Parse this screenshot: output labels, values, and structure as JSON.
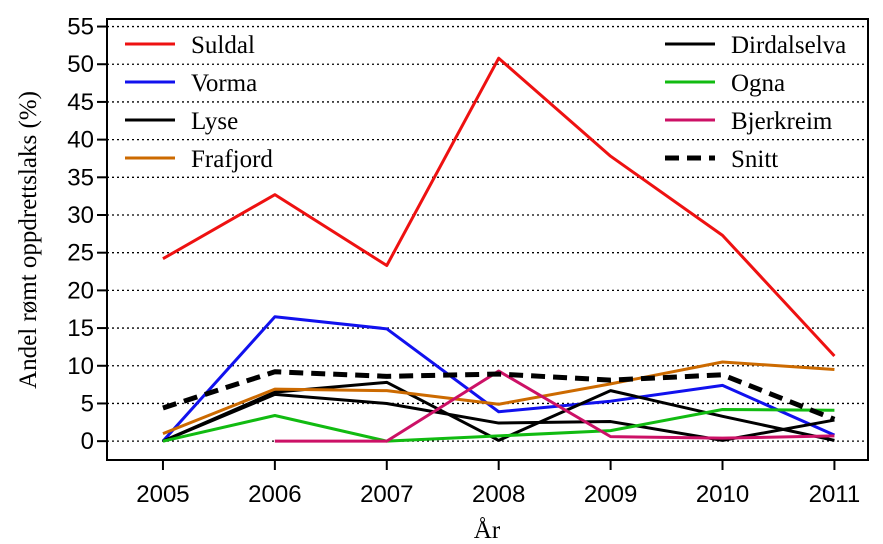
{
  "chart_data": {
    "type": "line",
    "x": [
      2005,
      2006,
      2007,
      2008,
      2009,
      2010,
      2011
    ],
    "x_label": "År",
    "y_label": "Andel rømt oppdrettslaks (%)",
    "xlim": [
      2004.5,
      2011.3
    ],
    "xticks": [
      2005,
      2006,
      2007,
      2008,
      2009,
      2010,
      2011
    ],
    "ylim": [
      -2.5,
      56
    ],
    "yticks": [
      0,
      5,
      10,
      15,
      20,
      25,
      30,
      35,
      40,
      45,
      50,
      55
    ],
    "grid": true,
    "series": [
      {
        "name": "Suldal",
        "color": "#ee1111",
        "values": [
          24.2,
          32.7,
          23.3,
          50.8,
          37.8,
          27.3,
          11.3
        ]
      },
      {
        "name": "Vorma",
        "color": "#1111ee",
        "values": [
          0,
          16.5,
          14.9,
          3.9,
          5.3,
          7.4,
          0.8
        ]
      },
      {
        "name": "Lyse",
        "color": "#000000",
        "values": [
          0,
          6.5,
          7.8,
          0.1,
          6.7,
          3.3,
          0.1
        ]
      },
      {
        "name": "Frafjord",
        "color": "#cc6a00",
        "values": [
          1.0,
          6.9,
          6.7,
          4.9,
          7.6,
          10.5,
          9.5
        ]
      },
      {
        "name": "Dirdalselva",
        "color": "#000000",
        "values": [
          0,
          6.2,
          5.0,
          2.4,
          2.6,
          0.1,
          2.8
        ]
      },
      {
        "name": "Ogna",
        "color": "#11bb11",
        "values": [
          0,
          3.4,
          0,
          0.7,
          1.4,
          4.2,
          4.1
        ]
      },
      {
        "name": "Bjerkreim",
        "color": "#cc1166",
        "values": [
          null,
          0,
          0,
          9.3,
          0.6,
          0.4,
          0.7
        ]
      },
      {
        "name": "Snitt",
        "color": "#000000",
        "dashed": true,
        "values": [
          4.4,
          9.2,
          8.6,
          8.9,
          8.1,
          8.8,
          2.9
        ]
      }
    ]
  }
}
